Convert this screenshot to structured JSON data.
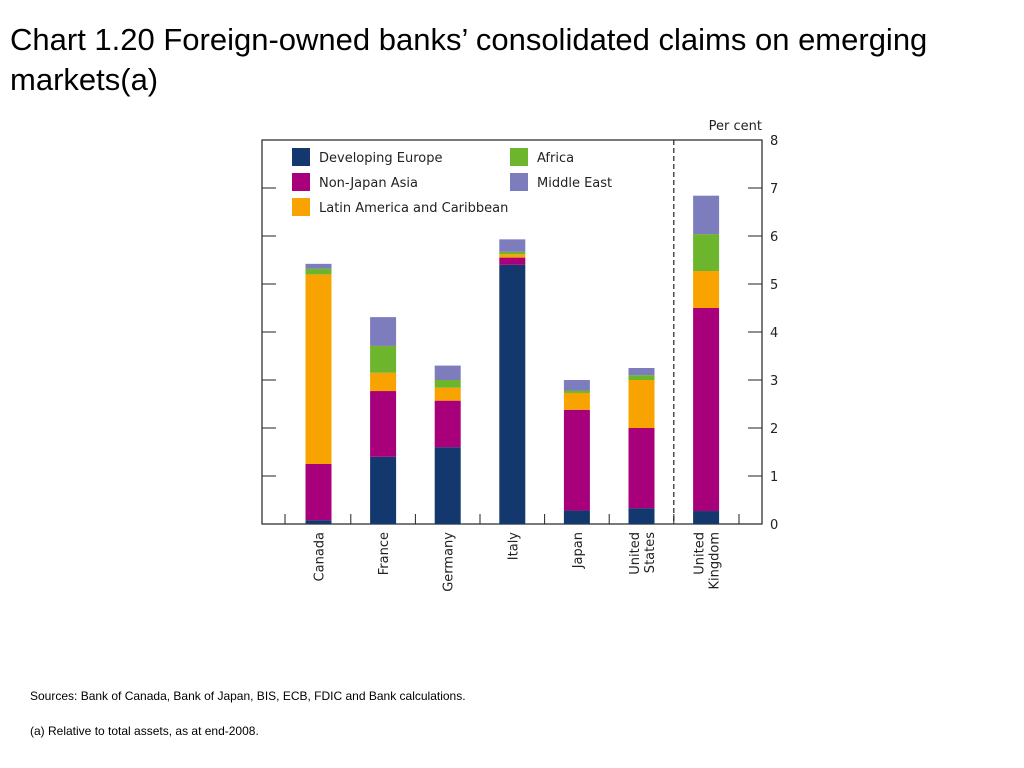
{
  "slide": {
    "title": "Chart 1.20  Foreign-owned banks’ consolidated claims on emerging markets(a)"
  },
  "footnotes": {
    "sources": "Sources:  Bank of Canada, Bank of Japan, BIS, ECB, FDIC and Bank calculations.",
    "note": "(a)  Relative to total assets, as at end-2008."
  },
  "colors": {
    "Developing Europe": "#12386e",
    "Non-Japan Asia": "#a8007a",
    "Latin America and Caribbean": "#f9a300",
    "Africa": "#6cb52d",
    "Middle East": "#7d7dbd"
  },
  "chart_data": {
    "type": "bar",
    "stacked": true,
    "unit_label": "Per cent",
    "categories": [
      [
        "Canada"
      ],
      [
        "France"
      ],
      [
        "Germany"
      ],
      [
        "Italy"
      ],
      [
        "Japan"
      ],
      [
        "United",
        "States"
      ],
      [
        "United",
        "Kingdom"
      ]
    ],
    "series": [
      {
        "name": "Developing Europe",
        "values": [
          0.08,
          1.4,
          1.6,
          5.4,
          0.28,
          0.33,
          0.27
        ]
      },
      {
        "name": "Non-Japan Asia",
        "values": [
          1.17,
          1.37,
          0.97,
          0.15,
          2.1,
          1.67,
          4.23
        ]
      },
      {
        "name": "Latin America and Caribbean",
        "values": [
          3.95,
          0.38,
          0.27,
          0.07,
          0.35,
          1.0,
          0.77
        ]
      },
      {
        "name": "Africa",
        "values": [
          0.12,
          0.56,
          0.16,
          0.05,
          0.05,
          0.1,
          0.77
        ]
      },
      {
        "name": "Middle East",
        "values": [
          0.1,
          0.6,
          0.3,
          0.26,
          0.22,
          0.15,
          0.8
        ]
      }
    ],
    "ylim": [
      0,
      8
    ],
    "yticks": [
      "0",
      "1",
      "2",
      "3",
      "4",
      "5",
      "6",
      "7",
      "8"
    ],
    "y_axis_side": "right",
    "legend_position": "top-left inside",
    "separator_before_last_category": true,
    "grid": false
  }
}
